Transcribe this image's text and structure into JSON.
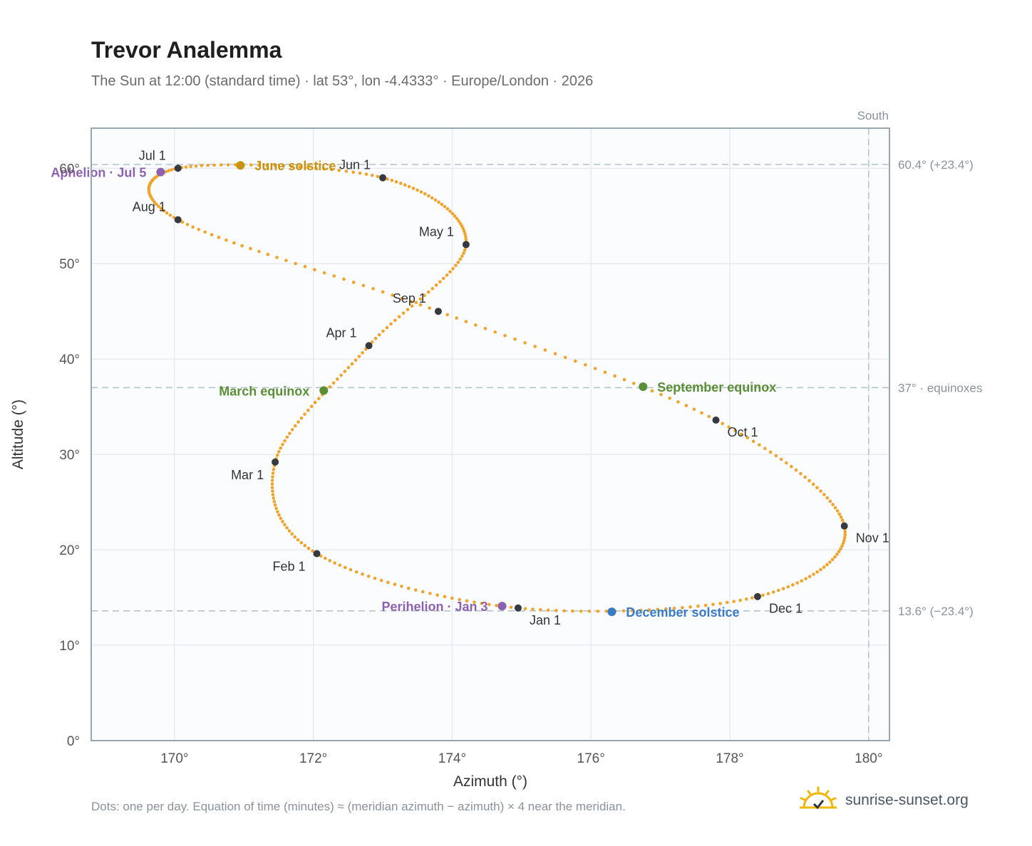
{
  "header": {
    "title": "Trevor Analemma",
    "subtitle": "The Sun at 12:00 (standard time) · lat 53°, lon -4.4333° · Europe/London · 2026"
  },
  "footer": {
    "note": "Dots: one per day. Equation of time (minutes) ≈ (meridian azimuth − azimuth) × 4 near the meridian.",
    "brand": "sunrise-sunset.org",
    "brand_icon": "sunrise-icon"
  },
  "colors": {
    "path": "#f2a32a",
    "month_marker": "#343a40",
    "solstice_june": "#c9930e",
    "solstice_december": "#3a7bc8",
    "equinox": "#5a8f35",
    "apsis": "#8c62b0",
    "reference_line": "#b8c4cc",
    "plot_bg": "#fafcfe",
    "axis_frame": "#9aa6b2"
  },
  "chart_data": {
    "type": "scatter",
    "xlabel": "Azimuth (°)",
    "ylabel": "Altitude (°)",
    "xlim": [
      168.8,
      180.3
    ],
    "ylim": [
      0,
      64.2
    ],
    "xticks": [
      {
        "value": 170,
        "label": "170°"
      },
      {
        "value": 172,
        "label": "172°"
      },
      {
        "value": 174,
        "label": "174°"
      },
      {
        "value": 176,
        "label": "176°"
      },
      {
        "value": 178,
        "label": "178°"
      },
      {
        "value": 180,
        "label": "180°"
      }
    ],
    "yticks": [
      {
        "value": 0,
        "label": "0°"
      },
      {
        "value": 10,
        "label": "10°"
      },
      {
        "value": 20,
        "label": "20°"
      },
      {
        "value": 30,
        "label": "30°"
      },
      {
        "value": 40,
        "label": "40°"
      },
      {
        "value": 50,
        "label": "50°"
      },
      {
        "value": 60,
        "label": "60°"
      }
    ],
    "grid": true,
    "path_keypoints": [
      {
        "day": 0,
        "az": 174.95,
        "alt": 13.9
      },
      {
        "day": 31,
        "az": 172.05,
        "alt": 19.6
      },
      {
        "day": 59,
        "az": 171.45,
        "alt": 29.2
      },
      {
        "day": 90,
        "az": 172.8,
        "alt": 41.4
      },
      {
        "day": 120,
        "az": 174.2,
        "alt": 52.0
      },
      {
        "day": 151,
        "az": 173.0,
        "alt": 59.0
      },
      {
        "day": 181,
        "az": 170.05,
        "alt": 60.0
      },
      {
        "day": 212,
        "az": 170.05,
        "alt": 54.6
      },
      {
        "day": 243,
        "az": 173.8,
        "alt": 45.0
      },
      {
        "day": 273,
        "az": 177.8,
        "alt": 33.6
      },
      {
        "day": 304,
        "az": 179.65,
        "alt": 22.5
      },
      {
        "day": 334,
        "az": 178.4,
        "alt": 15.1
      },
      {
        "day": 365,
        "az": 174.95,
        "alt": 13.9
      }
    ],
    "month_markers": [
      {
        "label": "Jan 1",
        "az": 174.95,
        "alt": 13.9,
        "anchor": "below-right"
      },
      {
        "label": "Feb 1",
        "az": 172.05,
        "alt": 19.6,
        "anchor": "below-left"
      },
      {
        "label": "Mar 1",
        "az": 171.45,
        "alt": 29.2,
        "anchor": "below-left"
      },
      {
        "label": "Apr 1",
        "az": 172.8,
        "alt": 41.4,
        "anchor": "above-left"
      },
      {
        "label": "May 1",
        "az": 174.2,
        "alt": 52.0,
        "anchor": "above-left"
      },
      {
        "label": "Jun 1",
        "az": 173.0,
        "alt": 59.0,
        "anchor": "above-left"
      },
      {
        "label": "Jul 1",
        "az": 170.05,
        "alt": 60.0,
        "anchor": "above-left"
      },
      {
        "label": "Aug 1",
        "az": 170.05,
        "alt": 54.6,
        "anchor": "above-left"
      },
      {
        "label": "Sep 1",
        "az": 173.8,
        "alt": 45.0,
        "anchor": "above-left"
      },
      {
        "label": "Oct 1",
        "az": 177.8,
        "alt": 33.6,
        "anchor": "below-right"
      },
      {
        "label": "Nov 1",
        "az": 179.65,
        "alt": 22.5,
        "anchor": "below-right"
      },
      {
        "label": "Dec 1",
        "az": 178.4,
        "alt": 15.1,
        "anchor": "below-right"
      }
    ],
    "events": [
      {
        "label": "June solstice",
        "az": 170.95,
        "alt": 60.3,
        "color": "#c9930e",
        "side": "right"
      },
      {
        "label": "December solstice",
        "az": 176.3,
        "alt": 13.5,
        "color": "#3a7bc8",
        "side": "right"
      },
      {
        "label": "March equinox",
        "az": 172.15,
        "alt": 36.7,
        "color": "#5a8f35",
        "side": "left"
      },
      {
        "label": "September equinox",
        "az": 176.75,
        "alt": 37.1,
        "color": "#5a8f35",
        "side": "right"
      },
      {
        "label": "Aphelion · Jul 5",
        "az": 169.8,
        "alt": 59.6,
        "color": "#8c62b0",
        "side": "left"
      },
      {
        "label": "Perihelion · Jan 3",
        "az": 174.72,
        "alt": 14.1,
        "color": "#8c62b0",
        "side": "left"
      }
    ],
    "reference_lines": [
      {
        "alt": 60.4,
        "label": "60.4° (+23.4°)"
      },
      {
        "alt": 37,
        "label": "37° · equinoxes"
      },
      {
        "alt": 13.6,
        "label": "13.6° (−23.4°)"
      }
    ],
    "meridian": {
      "az": 180,
      "label": "South"
    }
  }
}
